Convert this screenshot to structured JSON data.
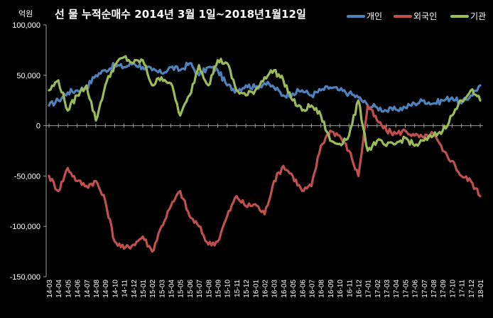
{
  "chart_data": {
    "type": "line",
    "title": "선 물 누적순매수 2014년 3월 1일~2018년1월12일",
    "ylabel": "억원",
    "xlabel": "",
    "ylim": [
      -150000,
      100000
    ],
    "yticks": [
      100000,
      50000,
      0,
      -50000,
      -100000,
      -150000
    ],
    "ytick_labels": [
      "100,000",
      "50,000",
      "0",
      "-50,000",
      "-100,000",
      "-150,000"
    ],
    "categories": [
      "14-03",
      "14-04",
      "14-05",
      "14-06",
      "14-07",
      "14-08",
      "14-09",
      "14-10",
      "14-11",
      "14-12",
      "15-01",
      "15-02",
      "15-03",
      "15-04",
      "15-05",
      "15-06",
      "15-07",
      "15-08",
      "15-09",
      "15-10",
      "15-11",
      "15-12",
      "16-01",
      "16-02",
      "16-03",
      "16-04",
      "16-05",
      "16-06",
      "16-07",
      "16-08",
      "16-09",
      "16-10",
      "16-11",
      "16-12",
      "17-01",
      "17-02",
      "17-03",
      "17-04",
      "17-05",
      "17-06",
      "17-07",
      "17-08",
      "17-09",
      "17-10",
      "17-11",
      "17-12",
      "18-01"
    ],
    "legend_position": "top-right",
    "grid": false,
    "series": [
      {
        "name": "개인",
        "color": "#4f81bd",
        "values": [
          20000,
          25000,
          33000,
          35000,
          38000,
          50000,
          55000,
          60000,
          58000,
          62000,
          58000,
          55000,
          52000,
          58000,
          55000,
          62000,
          50000,
          58000,
          55000,
          40000,
          35000,
          40000,
          38000,
          42000,
          38000,
          30000,
          32000,
          35000,
          30000,
          35000,
          38000,
          35000,
          32000,
          28000,
          20000,
          18000,
          15000,
          16000,
          18000,
          22000,
          25000,
          22000,
          25000,
          28000,
          22000,
          30000,
          40000
        ]
      },
      {
        "name": "외국인",
        "color": "#c0504d",
        "values": [
          -50000,
          -65000,
          -42000,
          -55000,
          -60000,
          -55000,
          -75000,
          -115000,
          -122000,
          -118000,
          -110000,
          -125000,
          -100000,
          -80000,
          -65000,
          -90000,
          -100000,
          -118000,
          -115000,
          -90000,
          -70000,
          -80000,
          -78000,
          -88000,
          -55000,
          -40000,
          -50000,
          -65000,
          -60000,
          -20000,
          -5000,
          -10000,
          -25000,
          -50000,
          20000,
          5000,
          -5000,
          -8000,
          -5000,
          -10000,
          -12000,
          -8000,
          -25000,
          -35000,
          -50000,
          -55000,
          -70000
        ]
      },
      {
        "name": "기관",
        "color": "#9bbb59",
        "values": [
          35000,
          45000,
          15000,
          30000,
          40000,
          5000,
          40000,
          60000,
          68000,
          62000,
          65000,
          40000,
          48000,
          42000,
          10000,
          30000,
          60000,
          40000,
          65000,
          62000,
          35000,
          30000,
          35000,
          48000,
          55000,
          45000,
          25000,
          15000,
          20000,
          10000,
          -15000,
          -18000,
          -10000,
          25000,
          -25000,
          -15000,
          -20000,
          -18000,
          -12000,
          -20000,
          -15000,
          -10000,
          -5000,
          10000,
          25000,
          35000,
          25000
        ]
      }
    ]
  }
}
